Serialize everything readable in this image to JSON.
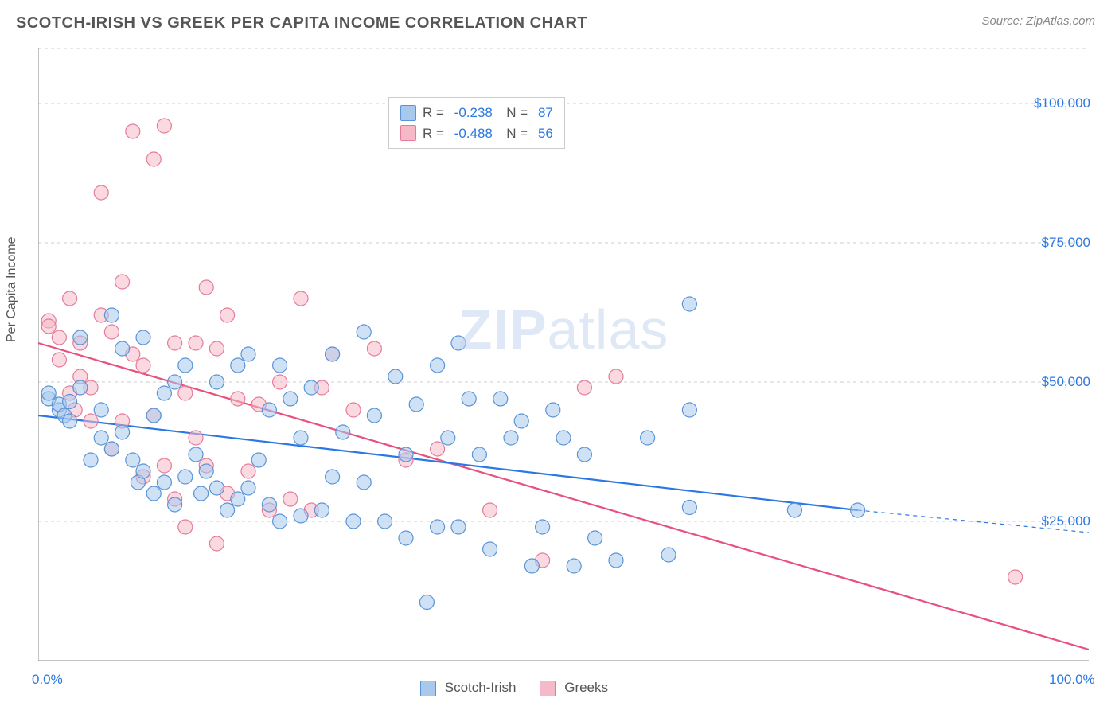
{
  "title": "SCOTCH-IRISH VS GREEK PER CAPITA INCOME CORRELATION CHART",
  "source": "Source: ZipAtlas.com",
  "y_axis_label": "Per Capita Income",
  "watermark_a": "ZIP",
  "watermark_b": "atlas",
  "chart": {
    "type": "scatter",
    "background_color": "#ffffff",
    "grid_color": "#cccccc",
    "axis_color": "#888888",
    "xlim": [
      0,
      100
    ],
    "ylim": [
      0,
      110000
    ],
    "x_tick_positions": [
      0,
      10,
      20,
      30,
      40,
      50,
      60,
      70,
      80,
      90,
      100
    ],
    "x_tick_labels": {
      "0": "0.0%",
      "100": "100.0%"
    },
    "y_gridlines": [
      25000,
      50000,
      75000,
      100000,
      110000
    ],
    "y_tick_labels": {
      "25000": "$25,000",
      "50000": "$50,000",
      "75000": "$75,000",
      "100000": "$100,000"
    },
    "marker_radius": 9,
    "marker_opacity": 0.55,
    "series": [
      {
        "name": "Scotch-Irish",
        "fill": "#a8c8ec",
        "stroke": "#5b93d6",
        "R": "-0.238",
        "N": "87",
        "trend": {
          "x1": 0,
          "y1": 44000,
          "x2": 78,
          "y2": 27000,
          "dash_x1": 78,
          "dash_y1": 27000,
          "dash_x2": 100,
          "dash_y2": 23000,
          "color": "#2b78e4",
          "width": 2.2
        },
        "points": [
          [
            1,
            47000
          ],
          [
            1,
            48000
          ],
          [
            2,
            45000
          ],
          [
            2,
            46000
          ],
          [
            2.5,
            44000
          ],
          [
            3,
            46500
          ],
          [
            3,
            43000
          ],
          [
            4,
            58000
          ],
          [
            4,
            49000
          ],
          [
            5,
            36000
          ],
          [
            6,
            45000
          ],
          [
            6,
            40000
          ],
          [
            7,
            62000
          ],
          [
            7,
            38000
          ],
          [
            8,
            56000
          ],
          [
            8,
            41000
          ],
          [
            9,
            36000
          ],
          [
            9.5,
            32000
          ],
          [
            10,
            58000
          ],
          [
            10,
            34000
          ],
          [
            11,
            44000
          ],
          [
            11,
            30000
          ],
          [
            12,
            48000
          ],
          [
            12,
            32000
          ],
          [
            13,
            50000
          ],
          [
            13,
            28000
          ],
          [
            14,
            53000
          ],
          [
            14,
            33000
          ],
          [
            15,
            37000
          ],
          [
            15.5,
            30000
          ],
          [
            16,
            34000
          ],
          [
            17,
            50000
          ],
          [
            17,
            31000
          ],
          [
            18,
            27000
          ],
          [
            19,
            53000
          ],
          [
            19,
            29000
          ],
          [
            20,
            55000
          ],
          [
            20,
            31000
          ],
          [
            21,
            36000
          ],
          [
            22,
            45000
          ],
          [
            22,
            28000
          ],
          [
            23,
            53000
          ],
          [
            23,
            25000
          ],
          [
            24,
            47000
          ],
          [
            25,
            40000
          ],
          [
            25,
            26000
          ],
          [
            26,
            49000
          ],
          [
            27,
            27000
          ],
          [
            28,
            55000
          ],
          [
            28,
            33000
          ],
          [
            29,
            41000
          ],
          [
            30,
            25000
          ],
          [
            31,
            59000
          ],
          [
            31,
            32000
          ],
          [
            32,
            44000
          ],
          [
            33,
            25000
          ],
          [
            34,
            51000
          ],
          [
            35,
            37000
          ],
          [
            35,
            22000
          ],
          [
            36,
            46000
          ],
          [
            37,
            10500
          ],
          [
            38,
            53000
          ],
          [
            38,
            24000
          ],
          [
            39,
            40000
          ],
          [
            40,
            57000
          ],
          [
            40,
            24000
          ],
          [
            41,
            47000
          ],
          [
            42,
            37000
          ],
          [
            43,
            20000
          ],
          [
            44,
            47000
          ],
          [
            45,
            40000
          ],
          [
            46,
            43000
          ],
          [
            47,
            17000
          ],
          [
            48,
            24000
          ],
          [
            49,
            45000
          ],
          [
            50,
            40000
          ],
          [
            51,
            17000
          ],
          [
            52,
            37000
          ],
          [
            53,
            22000
          ],
          [
            55,
            18000
          ],
          [
            58,
            40000
          ],
          [
            60,
            19000
          ],
          [
            62,
            64000
          ],
          [
            62,
            45000
          ],
          [
            62,
            27500
          ],
          [
            72,
            27000
          ],
          [
            78,
            27000
          ]
        ]
      },
      {
        "name": "Greeks",
        "fill": "#f5b9c7",
        "stroke": "#e67a9a",
        "R": "-0.488",
        "N": "56",
        "trend": {
          "x1": 0,
          "y1": 57000,
          "x2": 100,
          "y2": 2000,
          "color": "#e8517d",
          "width": 2.2
        },
        "points": [
          [
            1,
            61000
          ],
          [
            1,
            60000
          ],
          [
            2,
            58000
          ],
          [
            2,
            54000
          ],
          [
            3,
            65000
          ],
          [
            3,
            48000
          ],
          [
            3.5,
            45000
          ],
          [
            4,
            57000
          ],
          [
            4,
            51000
          ],
          [
            5,
            49000
          ],
          [
            5,
            43000
          ],
          [
            6,
            62000
          ],
          [
            6,
            84000
          ],
          [
            7,
            59000
          ],
          [
            7,
            38000
          ],
          [
            8,
            68000
          ],
          [
            8,
            43000
          ],
          [
            9,
            95000
          ],
          [
            9,
            55000
          ],
          [
            10,
            53000
          ],
          [
            10,
            33000
          ],
          [
            11,
            90000
          ],
          [
            11,
            44000
          ],
          [
            12,
            96000
          ],
          [
            12,
            35000
          ],
          [
            13,
            57000
          ],
          [
            13,
            29000
          ],
          [
            14,
            48000
          ],
          [
            14,
            24000
          ],
          [
            15,
            57000
          ],
          [
            15,
            40000
          ],
          [
            16,
            67000
          ],
          [
            16,
            35000
          ],
          [
            17,
            56000
          ],
          [
            17,
            21000
          ],
          [
            18,
            62000
          ],
          [
            18,
            30000
          ],
          [
            19,
            47000
          ],
          [
            20,
            34000
          ],
          [
            21,
            46000
          ],
          [
            22,
            27000
          ],
          [
            23,
            50000
          ],
          [
            24,
            29000
          ],
          [
            25,
            65000
          ],
          [
            26,
            27000
          ],
          [
            27,
            49000
          ],
          [
            28,
            55000
          ],
          [
            30,
            45000
          ],
          [
            32,
            56000
          ],
          [
            35,
            36000
          ],
          [
            38,
            38000
          ],
          [
            43,
            27000
          ],
          [
            48,
            18000
          ],
          [
            52,
            49000
          ],
          [
            55,
            51000
          ],
          [
            93,
            15000
          ]
        ]
      }
    ]
  },
  "legend_bottom": [
    {
      "label": "Scotch-Irish",
      "fill": "#a8c8ec",
      "stroke": "#5b93d6"
    },
    {
      "label": "Greeks",
      "fill": "#f5b9c7",
      "stroke": "#e67a9a"
    }
  ],
  "colors": {
    "tick_text": "#2b78e4",
    "label_text": "#555555"
  }
}
